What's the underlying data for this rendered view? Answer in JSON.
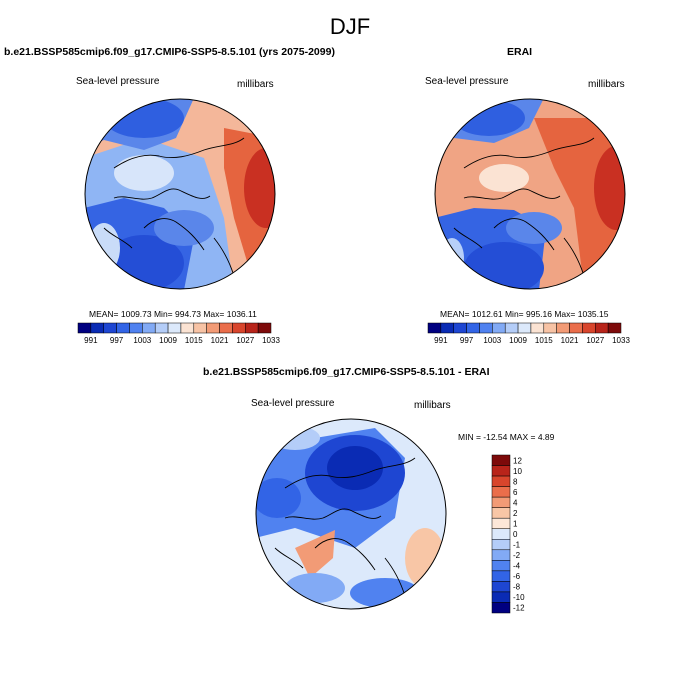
{
  "figure": {
    "season": "DJF"
  },
  "panels": {
    "model": {
      "title": "b.e21.BSSP585cmip6.f09_g17.CMIP6-SSP5-8.5.101 (yrs 2075-2099)",
      "variable": "Sea-level pressure",
      "units": "millibars",
      "stats": "MEAN= 1009.73  Min= 994.73  Max= 1036.11"
    },
    "obs": {
      "title": "ERAI",
      "variable": "Sea-level pressure",
      "units": "millibars",
      "stats": "MEAN= 1012.61  Min= 995.16  Max= 1035.15"
    },
    "diff": {
      "title": "b.e21.BSSP585cmip6.f09_g17.CMIP6-SSP5-8.5.101 - ERAI",
      "variable": "Sea-level pressure",
      "units": "millibars",
      "stats": "MIN = -12.54 MAX =   4.89"
    }
  },
  "colorbars": {
    "abs": {
      "colors": [
        "#000080",
        "#0a2bb4",
        "#1e46d2",
        "#3264e6",
        "#5082f0",
        "#82aaf5",
        "#b4cdf8",
        "#dce9fb",
        "#fbe3d3",
        "#f7c3a5",
        "#f29b76",
        "#ea6e4b",
        "#d8452c",
        "#b8241a",
        "#7d0a0a"
      ],
      "labels": [
        "991",
        "997",
        "1003",
        "1009",
        "1015",
        "1021",
        "1027",
        "1033"
      ]
    },
    "diff": {
      "colors": [
        "#000080",
        "#0a2bb4",
        "#1e46d2",
        "#3264e6",
        "#5082f0",
        "#82aaf5",
        "#b4cdf8",
        "#dce9fb",
        "#fde7d8",
        "#f8c6a6",
        "#f29b76",
        "#ea6e4b",
        "#d8452c",
        "#b8241a",
        "#7d0a0a"
      ],
      "labels": [
        "12",
        "10",
        "8",
        "6",
        "4",
        "2",
        "1",
        "0",
        "-1",
        "-2",
        "-4",
        "-6",
        "-8",
        "-10",
        "-12"
      ]
    }
  }
}
